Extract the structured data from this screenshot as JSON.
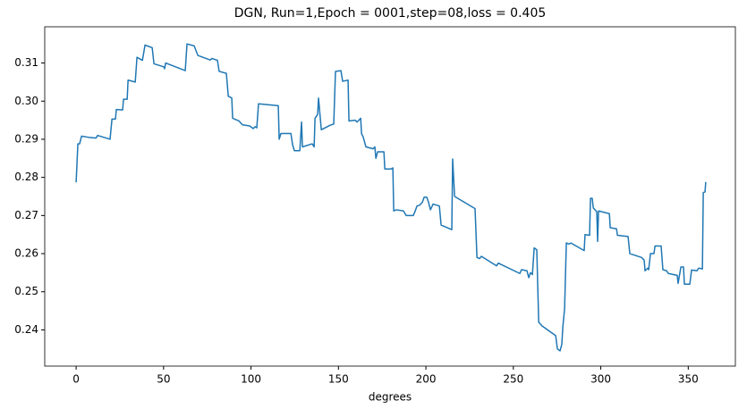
{
  "chart_data": {
    "type": "line",
    "title": "DGN, Run=1,Epoch = 0001,step=08,loss = 0.405",
    "xlabel": "degrees",
    "x": [
      0,
      1.0,
      2.0,
      3.1,
      7.2,
      11.3,
      12.3,
      19.4,
      20.5,
      22.5,
      23.0,
      26.6,
      27.1,
      29.2,
      29.7,
      33.8,
      34.8,
      37.9,
      39.4,
      43.5,
      44.5,
      50.1,
      50.6,
      51.2,
      62.4,
      63.4,
      67.5,
      69.6,
      76.7,
      77.7,
      80.8,
      81.8,
      85.9,
      87.0,
      89.0,
      89.5,
      93.1,
      95.1,
      99.2,
      101.3,
      102.3,
      103.3,
      104.3,
      115.6,
      116.1,
      117.1,
      122.8,
      123.8,
      124.8,
      127.9,
      128.9,
      129.4,
      135.0,
      136.1,
      136.6,
      138.1,
      138.6,
      140.2,
      145.3,
      147.3,
      148.3,
      151.4,
      152.4,
      155.5,
      156.0,
      159.6,
      160.6,
      162.7,
      163.2,
      164.2,
      165.7,
      169.8,
      170.8,
      171.4,
      172.4,
      176.0,
      176.5,
      180.1,
      181.1,
      181.6,
      183.1,
      187.2,
      188.7,
      192.8,
      193.9,
      194.9,
      196.4,
      198.0,
      199.0,
      200.5,
      201.5,
      202.6,
      204.1,
      207.7,
      208.7,
      214.8,
      215.3,
      216.4,
      228.1,
      229.2,
      230.7,
      231.7,
      240.4,
      241.4,
      253.7,
      254.7,
      257.8,
      258.8,
      259.8,
      260.9,
      261.9,
      263.4,
      264.5,
      266.5,
      274.2,
      275.2,
      276.7,
      277.7,
      278.3,
      279.3,
      280.3,
      281.8,
      282.9,
      290.5,
      291.0,
      293.6,
      294.1,
      295.1,
      295.7,
      297.7,
      298.2,
      298.7,
      304.9,
      305.4,
      309.0,
      309.5,
      315.6,
      316.6,
      323.3,
      324.8,
      325.3,
      326.9,
      327.4,
      328.4,
      330.4,
      331.0,
      334.5,
      335.5,
      337.6,
      338.6,
      343.7,
      344.2,
      345.8,
      347.3,
      347.8,
      350.9,
      351.9,
      355.0,
      356.0,
      358.1,
      358.6,
      359.6,
      360
    ],
    "series": [
      {
        "color": "#1f77b4",
        "values": [
          0.2787,
          0.2888,
          0.2888,
          0.2908,
          0.2905,
          0.2903,
          0.291,
          0.29,
          0.2953,
          0.2953,
          0.2978,
          0.2977,
          0.3005,
          0.3005,
          0.3055,
          0.305,
          0.3115,
          0.3107,
          0.3147,
          0.314,
          0.3098,
          0.309,
          0.3085,
          0.31,
          0.308,
          0.315,
          0.3145,
          0.312,
          0.3108,
          0.3112,
          0.3107,
          0.3078,
          0.3073,
          0.3013,
          0.3008,
          0.2955,
          0.2948,
          0.2938,
          0.2935,
          0.2928,
          0.2933,
          0.293,
          0.2993,
          0.2988,
          0.29,
          0.2915,
          0.2915,
          0.2885,
          0.287,
          0.287,
          0.2945,
          0.288,
          0.2888,
          0.288,
          0.2955,
          0.2965,
          0.3008,
          0.2925,
          0.2937,
          0.294,
          0.3078,
          0.308,
          0.3052,
          0.3055,
          0.2948,
          0.295,
          0.2945,
          0.2955,
          0.2915,
          0.2905,
          0.288,
          0.2875,
          0.288,
          0.285,
          0.2867,
          0.2867,
          0.2822,
          0.2822,
          0.2825,
          0.2712,
          0.2715,
          0.2712,
          0.27,
          0.27,
          0.2712,
          0.2725,
          0.2727,
          0.2735,
          0.2748,
          0.2748,
          0.2735,
          0.2715,
          0.273,
          0.2725,
          0.2675,
          0.2663,
          0.2848,
          0.275,
          0.2718,
          0.259,
          0.2587,
          0.2593,
          0.2568,
          0.2575,
          0.2548,
          0.2558,
          0.2555,
          0.2537,
          0.255,
          0.2545,
          0.2615,
          0.261,
          0.242,
          0.241,
          0.2385,
          0.235,
          0.2345,
          0.2362,
          0.2408,
          0.2455,
          0.2628,
          0.2625,
          0.2628,
          0.2608,
          0.265,
          0.2648,
          0.2745,
          0.2745,
          0.272,
          0.271,
          0.2632,
          0.2712,
          0.2705,
          0.2668,
          0.2665,
          0.2648,
          0.2645,
          0.26,
          0.259,
          0.2583,
          0.2555,
          0.2562,
          0.2558,
          0.26,
          0.26,
          0.262,
          0.262,
          0.2558,
          0.2555,
          0.2548,
          0.2543,
          0.2522,
          0.2565,
          0.2565,
          0.252,
          0.252,
          0.2557,
          0.2555,
          0.2562,
          0.256,
          0.276,
          0.2762,
          0.2788
        ]
      }
    ],
    "xlim": [
      -17.95,
      376.95
    ],
    "xticks": [
      0,
      50,
      100,
      150,
      200,
      250,
      300,
      350
    ],
    "ylim": [
      0.2305,
      0.3195
    ],
    "yticks": [
      0.24,
      0.25,
      0.26,
      0.27,
      0.28,
      0.29,
      {
        "value": 0.3,
        "label": "0.30"
      },
      0.31
    ]
  }
}
